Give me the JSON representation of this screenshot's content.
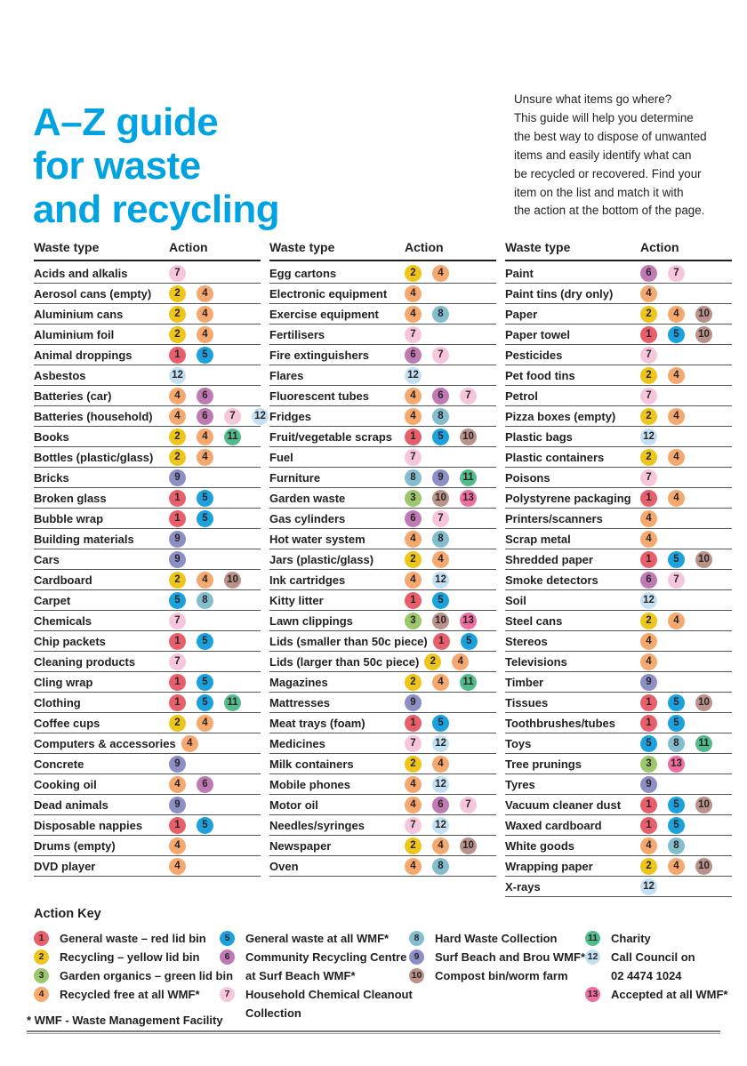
{
  "page": {
    "title_lines": [
      "A–Z guide",
      "for waste",
      "and recycling"
    ],
    "accent_color": "#00a3e2",
    "intro_lines": [
      "Unsure what items go where?",
      "This guide will help you determine",
      "the best way to dispose of unwanted",
      "items and easily identify what can",
      "be recycled or recovered. Find your",
      "item on the list and match it with",
      "the action at the bottom of the page."
    ],
    "footnote": "* WMF - Waste Management Facility"
  },
  "table": {
    "headers": {
      "waste_type": "Waste type",
      "action": "Action"
    },
    "columns": [
      {
        "rows": [
          {
            "item": "Acids and alkalis",
            "actions": [
              7
            ]
          },
          {
            "item": "Aerosol cans (empty)",
            "actions": [
              2,
              4
            ]
          },
          {
            "item": "Aluminium cans",
            "actions": [
              2,
              4
            ]
          },
          {
            "item": "Aluminium foil",
            "actions": [
              2,
              4
            ]
          },
          {
            "item": "Animal droppings",
            "actions": [
              1,
              5
            ]
          },
          {
            "item": "Asbestos",
            "actions": [
              12
            ]
          },
          {
            "item": "Batteries (car)",
            "actions": [
              4,
              6
            ]
          },
          {
            "item": "Batteries (household)",
            "actions": [
              4,
              6,
              7,
              12
            ]
          },
          {
            "item": "Books",
            "actions": [
              2,
              4,
              11
            ]
          },
          {
            "item": "Bottles (plastic/glass)",
            "actions": [
              2,
              4
            ]
          },
          {
            "item": "Bricks",
            "actions": [
              9
            ]
          },
          {
            "item": "Broken glass",
            "actions": [
              1,
              5
            ]
          },
          {
            "item": "Bubble wrap",
            "actions": [
              1,
              5
            ]
          },
          {
            "item": "Building materials",
            "actions": [
              9
            ]
          },
          {
            "item": "Cars",
            "actions": [
              9
            ]
          },
          {
            "item": "Cardboard",
            "actions": [
              2,
              4,
              10
            ]
          },
          {
            "item": "Carpet",
            "actions": [
              5,
              8
            ]
          },
          {
            "item": "Chemicals",
            "actions": [
              7
            ]
          },
          {
            "item": "Chip packets",
            "actions": [
              1,
              5
            ]
          },
          {
            "item": "Cleaning products",
            "actions": [
              7
            ]
          },
          {
            "item": "Cling wrap",
            "actions": [
              1,
              5
            ]
          },
          {
            "item": "Clothing",
            "actions": [
              1,
              5,
              11
            ]
          },
          {
            "item": "Coffee cups",
            "actions": [
              2,
              4
            ]
          },
          {
            "item": "Computers & accessories",
            "actions": [
              4
            ]
          },
          {
            "item": "Concrete",
            "actions": [
              9
            ]
          },
          {
            "item": "Cooking oil",
            "actions": [
              4,
              6
            ]
          },
          {
            "item": "Dead animals",
            "actions": [
              9
            ]
          },
          {
            "item": "Disposable nappies",
            "actions": [
              1,
              5
            ]
          },
          {
            "item": "Drums (empty)",
            "actions": [
              4
            ]
          },
          {
            "item": "DVD player",
            "actions": [
              4
            ]
          }
        ]
      },
      {
        "rows": [
          {
            "item": "Egg cartons",
            "actions": [
              2,
              4
            ]
          },
          {
            "item": "Electronic equipment",
            "actions": [
              4
            ]
          },
          {
            "item": "Exercise equipment",
            "actions": [
              4,
              8
            ]
          },
          {
            "item": "Fertilisers",
            "actions": [
              7
            ]
          },
          {
            "item": "Fire extinguishers",
            "actions": [
              6,
              7
            ]
          },
          {
            "item": "Flares",
            "actions": [
              12
            ]
          },
          {
            "item": "Fluorescent tubes",
            "actions": [
              4,
              6,
              7
            ]
          },
          {
            "item": "Fridges",
            "actions": [
              4,
              8
            ]
          },
          {
            "item": "Fruit/vegetable scraps",
            "actions": [
              1,
              5,
              10
            ]
          },
          {
            "item": "Fuel",
            "actions": [
              7
            ]
          },
          {
            "item": "Furniture",
            "actions": [
              8,
              9,
              11
            ]
          },
          {
            "item": "Garden waste",
            "actions": [
              3,
              10,
              13
            ]
          },
          {
            "item": "Gas cylinders",
            "actions": [
              6,
              7
            ]
          },
          {
            "item": "Hot water system",
            "actions": [
              4,
              8
            ]
          },
          {
            "item": "Jars (plastic/glass)",
            "actions": [
              2,
              4
            ]
          },
          {
            "item": "Ink cartridges",
            "actions": [
              4,
              12
            ]
          },
          {
            "item": "Kitty litter",
            "actions": [
              1,
              5
            ]
          },
          {
            "item": "Lawn clippings",
            "actions": [
              3,
              10,
              13
            ]
          },
          {
            "item": "Lids (smaller than 50c piece)",
            "actions": [
              1,
              5
            ]
          },
          {
            "item": "Lids (larger than 50c piece)",
            "actions": [
              2,
              4
            ]
          },
          {
            "item": "Magazines",
            "actions": [
              2,
              4,
              11
            ]
          },
          {
            "item": "Mattresses",
            "actions": [
              9
            ]
          },
          {
            "item": "Meat trays (foam)",
            "actions": [
              1,
              5
            ]
          },
          {
            "item": "Medicines",
            "actions": [
              7,
              12
            ]
          },
          {
            "item": "Milk containers",
            "actions": [
              2,
              4
            ]
          },
          {
            "item": "Mobile phones",
            "actions": [
              4,
              12
            ]
          },
          {
            "item": "Motor oil",
            "actions": [
              4,
              6,
              7
            ]
          },
          {
            "item": "Needles/syringes",
            "actions": [
              7,
              12
            ]
          },
          {
            "item": "Newspaper",
            "actions": [
              2,
              4,
              10
            ]
          },
          {
            "item": "Oven",
            "actions": [
              4,
              8
            ]
          }
        ]
      },
      {
        "rows": [
          {
            "item": "Paint",
            "actions": [
              6,
              7
            ]
          },
          {
            "item": "Paint tins (dry only)",
            "actions": [
              4
            ]
          },
          {
            "item": "Paper",
            "actions": [
              2,
              4,
              10
            ]
          },
          {
            "item": "Paper towel",
            "actions": [
              1,
              5,
              10
            ]
          },
          {
            "item": "Pesticides",
            "actions": [
              7
            ]
          },
          {
            "item": "Pet food tins",
            "actions": [
              2,
              4
            ]
          },
          {
            "item": "Petrol",
            "actions": [
              7
            ]
          },
          {
            "item": "Pizza boxes (empty)",
            "actions": [
              2,
              4
            ]
          },
          {
            "item": "Plastic bags",
            "actions": [
              12
            ]
          },
          {
            "item": "Plastic containers",
            "actions": [
              2,
              4
            ]
          },
          {
            "item": "Poisons",
            "actions": [
              7
            ]
          },
          {
            "item": "Polystyrene packaging",
            "actions": [
              1,
              4
            ]
          },
          {
            "item": "Printers/scanners",
            "actions": [
              4
            ]
          },
          {
            "item": "Scrap metal",
            "actions": [
              4
            ]
          },
          {
            "item": "Shredded paper",
            "actions": [
              1,
              5,
              10
            ]
          },
          {
            "item": "Smoke detectors",
            "actions": [
              6,
              7
            ]
          },
          {
            "item": "Soil",
            "actions": [
              12
            ]
          },
          {
            "item": "Steel cans",
            "actions": [
              2,
              4
            ]
          },
          {
            "item": "Stereos",
            "actions": [
              4
            ]
          },
          {
            "item": "Televisions",
            "actions": [
              4
            ]
          },
          {
            "item": "Timber",
            "actions": [
              9
            ]
          },
          {
            "item": "Tissues",
            "actions": [
              1,
              5,
              10
            ]
          },
          {
            "item": "Toothbrushes/tubes",
            "actions": [
              1,
              5
            ]
          },
          {
            "item": "Toys",
            "actions": [
              5,
              8,
              11
            ]
          },
          {
            "item": "Tree prunings",
            "actions": [
              3,
              13
            ]
          },
          {
            "item": "Tyres",
            "actions": [
              9
            ]
          },
          {
            "item": "Vacuum cleaner dust",
            "actions": [
              1,
              5,
              10
            ]
          },
          {
            "item": "Waxed cardboard",
            "actions": [
              1,
              5
            ]
          },
          {
            "item": "White goods",
            "actions": [
              4,
              8
            ]
          },
          {
            "item": "Wrapping paper",
            "actions": [
              2,
              4,
              10
            ]
          },
          {
            "item": "X-rays",
            "actions": [
              12
            ]
          }
        ]
      }
    ]
  },
  "action_key": {
    "title": "Action Key",
    "entries_columns": [
      [
        {
          "num": "1",
          "lines": [
            "General waste – red lid bin"
          ]
        },
        {
          "num": "2",
          "lines": [
            "Recycling – yellow lid bin"
          ]
        },
        {
          "num": "3",
          "lines": [
            "Garden organics – green lid bin"
          ]
        },
        {
          "num": "4",
          "lines": [
            "Recycled free at all WMF*"
          ]
        }
      ],
      [
        {
          "num": "5",
          "lines": [
            "General waste at all WMF*"
          ]
        },
        {
          "num": "6",
          "lines": [
            "Community Recycling Centre",
            "at Surf Beach WMF*"
          ]
        },
        {
          "num": "7",
          "lines": [
            "Household Chemical Cleanout",
            "Collection"
          ]
        }
      ],
      [
        {
          "num": "8",
          "lines": [
            "Hard Waste Collection"
          ]
        },
        {
          "num": "9",
          "lines": [
            "Surf Beach and Brou WMF*"
          ]
        },
        {
          "num": "10",
          "lines": [
            "Compost bin/worm farm"
          ]
        }
      ],
      [
        {
          "num": "11",
          "lines": [
            "Charity"
          ]
        },
        {
          "num": "12",
          "lines": [
            "Call Council on",
            "02 4474 1024"
          ]
        },
        {
          "num": "13",
          "lines": [
            "Accepted at all WMF*"
          ]
        }
      ]
    ]
  },
  "action_colors": {
    "1": "#e75f6b",
    "2": "#eec51a",
    "3": "#9dc76d",
    "4": "#f6a96e",
    "5": "#1ba2dd",
    "6": "#c07ab3",
    "7": "#f6c7dc",
    "8": "#84bece",
    "9": "#8b8fc5",
    "10": "#b9938a",
    "11": "#52bb8b",
    "12": "#c3e1f2",
    "13": "#ef6e9f"
  }
}
